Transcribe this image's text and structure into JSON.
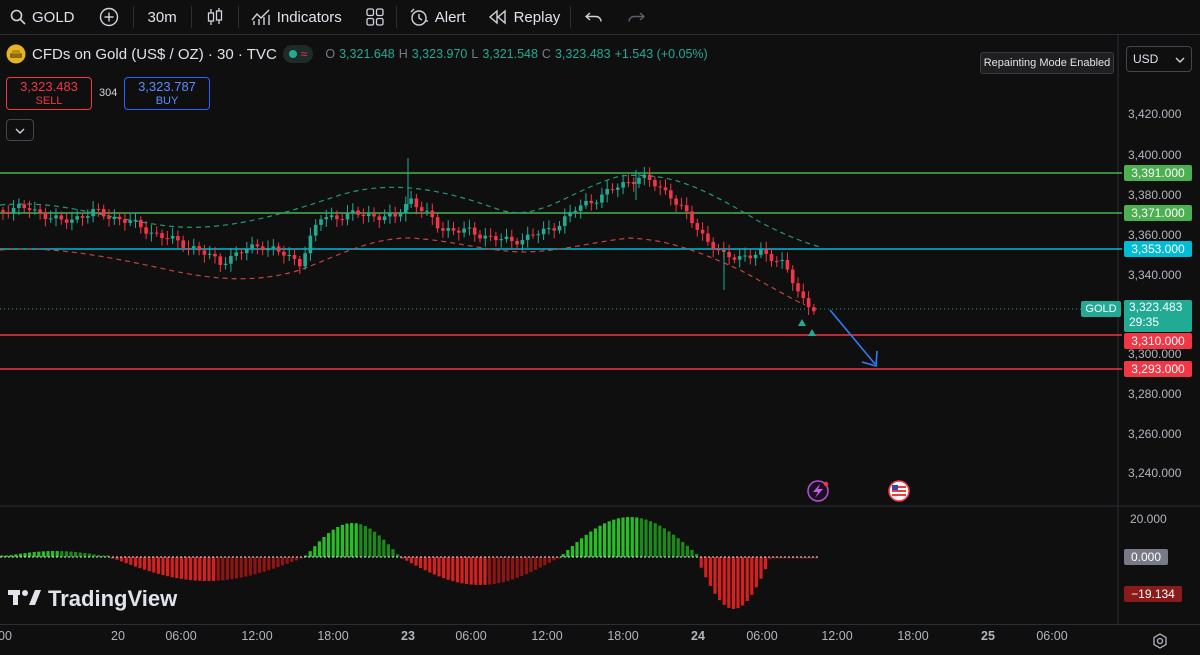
{
  "toolbar": {
    "symbol": "GOLD",
    "interval": "30m",
    "indicators": "Indicators",
    "alert": "Alert",
    "replay": "Replay"
  },
  "legend": {
    "title": "CFDs on Gold (US$ / OZ) · 30 · TVC",
    "o_label": "O",
    "o": "3,321.648",
    "h_label": "H",
    "h": "3,323.970",
    "l_label": "L",
    "l": "3,321.548",
    "c_label": "C",
    "c": "3,323.483",
    "change": "+1.543 (+0.05%)"
  },
  "trade": {
    "sell_price": "3,323.483",
    "sell_label": "SELL",
    "spread": "304",
    "buy_price": "3,323.787",
    "buy_label": "BUY"
  },
  "notice": "Repainting Mode Enabled",
  "currency": "USD",
  "price_axis": [
    "3,420.000",
    "3,400.000",
    "3,380.000",
    "3,360.000",
    "3,340.000",
    "3,300.000",
    "3,280.000",
    "3,260.000",
    "3,240.000"
  ],
  "price_tags": {
    "level_3391": "3,391.000",
    "level_3371": "3,371.000",
    "level_3353": "3,353.000",
    "current_symbol": "GOLD",
    "current_price": "3,323.483",
    "countdown": "29:35",
    "level_3310": "3,310.000",
    "level_3293": "3,293.000"
  },
  "oscillator_axis": {
    "top": "20.000",
    "zero": "0.000",
    "current": "−19.134"
  },
  "time_axis": [
    "00",
    "20",
    "06:00",
    "12:00",
    "18:00",
    "23",
    "06:00",
    "12:00",
    "18:00",
    "24",
    "06:00",
    "12:00",
    "18:00",
    "25",
    "06:00"
  ],
  "brand": "TradingView",
  "colors": {
    "up": "#22ab94",
    "down": "#f23645",
    "resistance": "#4caf50",
    "pivot": "#00bcd4",
    "support": "#f23645",
    "histogram_up": "#26c026",
    "histogram_down": "#d81f1f",
    "arrow": "#2f7df6"
  }
}
